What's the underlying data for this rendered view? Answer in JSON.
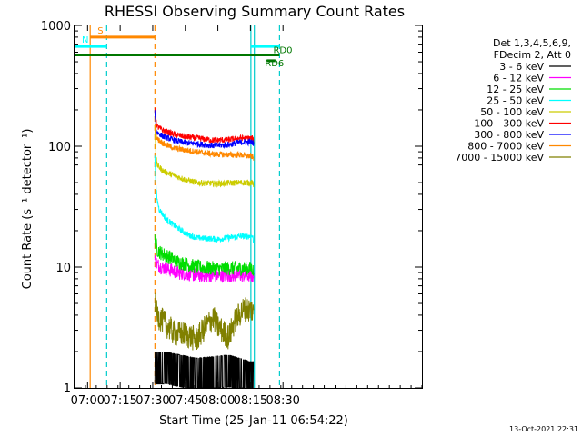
{
  "chart_data": {
    "type": "line",
    "title": "RHESSI Observing Summary Count Rates",
    "xlabel": "Start Time (25-Jan-11 06:54:22)",
    "ylabel": "Count Rate (s⁻¹ detector⁻¹)",
    "yscale": "log",
    "xlim": [
      414,
      574
    ],
    "ylim": [
      1,
      1000
    ],
    "x_ticks": [
      {
        "value": 420,
        "label": "07:00"
      },
      {
        "value": 435,
        "label": "07:15"
      },
      {
        "value": 450,
        "label": "07:30"
      },
      {
        "value": 465,
        "label": "07:45"
      },
      {
        "value": 480,
        "label": "08:00"
      },
      {
        "value": 495,
        "label": "08:15"
      },
      {
        "value": 510,
        "label": "08:30"
      }
    ],
    "y_ticks": [
      {
        "value": 1,
        "label": "1"
      },
      {
        "value": 10,
        "label": "10"
      },
      {
        "value": 100,
        "label": "100"
      },
      {
        "value": 1000,
        "label": "1000"
      }
    ],
    "legend_header": [
      "Det 1,3,4,5,6,9,",
      "FDecim 2, Att 0"
    ],
    "legend_position": "top-right outside",
    "series": [
      {
        "name": "3 - 6 keV",
        "color": "#000000",
        "x": [
          451.0,
          456,
          470,
          485,
          495,
          496.5
        ],
        "y": [
          1.8,
          1.8,
          1.6,
          1.7,
          1.5,
          1.5
        ]
      },
      {
        "name": "6 - 12 keV",
        "color": "#ff00ff",
        "x": [
          451.0,
          452,
          454,
          458,
          462,
          470,
          480,
          490,
          496,
          496.5
        ],
        "y": [
          11.5,
          10.5,
          10,
          9.5,
          9,
          8.6,
          8.5,
          8.6,
          8.5,
          8
        ]
      },
      {
        "name": "12 - 25 keV",
        "color": "#00dd00",
        "x": [
          451.0,
          452,
          454,
          458,
          462,
          470,
          480,
          490,
          496,
          496.5
        ],
        "y": [
          17,
          14,
          13,
          12,
          11,
          10,
          9.7,
          9.8,
          9.7,
          9
        ]
      },
      {
        "name": "25 - 50 keV",
        "color": "#00ffff",
        "x": [
          451.0,
          451.5,
          452,
          453,
          456,
          460,
          465,
          470,
          480,
          490,
          496,
          496.5
        ],
        "y": [
          80,
          45,
          36,
          30,
          25,
          22,
          19,
          17.5,
          17,
          18,
          18,
          16
        ]
      },
      {
        "name": "50 - 100 keV",
        "color": "#cccc00",
        "x": [
          451.0,
          451.5,
          452,
          455,
          460,
          465,
          470,
          480,
          490,
          496,
          496.5
        ],
        "y": [
          150,
          80,
          70,
          62,
          57,
          53,
          50,
          49,
          50,
          50,
          45
        ]
      },
      {
        "name": "100 - 300 keV",
        "color": "#ff0000",
        "x": [
          451.0,
          451.5,
          452,
          455,
          460,
          465,
          470,
          478,
          485,
          490,
          496,
          496.5
        ],
        "y": [
          210,
          160,
          145,
          135,
          125,
          120,
          117,
          112,
          113,
          117,
          116,
          110
        ]
      },
      {
        "name": "300 - 800 keV",
        "color": "#0000ff",
        "x": [
          451.0,
          451.5,
          452,
          455,
          460,
          465,
          470,
          478,
          485,
          490,
          496,
          496.5
        ],
        "y": [
          195,
          140,
          130,
          120,
          112,
          107,
          105,
          101,
          103,
          108,
          108,
          105
        ]
      },
      {
        "name": "800 - 7000 keV",
        "color": "#ff8800",
        "x": [
          451.0,
          451.5,
          452,
          455,
          460,
          465,
          470,
          478,
          485,
          490,
          496,
          496.5
        ],
        "y": [
          150,
          125,
          115,
          105,
          96,
          93,
          90,
          86,
          85,
          85,
          82,
          80
        ]
      },
      {
        "name": "7000 - 15000 keV",
        "color": "#808000",
        "x": [
          451.0,
          452,
          455,
          460,
          465,
          470,
          472,
          478,
          480,
          485,
          488,
          492,
          496,
          496.5
        ],
        "y": [
          5,
          4,
          3.5,
          2.8,
          2.8,
          2.5,
          2.8,
          3.8,
          3.2,
          2.6,
          3.6,
          4.5,
          4.4,
          4
        ]
      }
    ],
    "markers": {
      "vertical_lines": [
        {
          "x": 421.2,
          "color": "#ff8800",
          "style": "solid"
        },
        {
          "x": 428.8,
          "color": "#00cccc",
          "style": "dashed"
        },
        {
          "x": 451.0,
          "color": "#ff8800",
          "style": "dashed"
        },
        {
          "x": 495.2,
          "color": "#00cccc",
          "style": "solid"
        },
        {
          "x": 496.8,
          "color": "#00cccc",
          "style": "solid"
        },
        {
          "x": 508.4,
          "color": "#00cccc",
          "style": "dashed"
        }
      ],
      "segments": [
        {
          "label": "S",
          "color": "#ff8800",
          "x_start": 421.2,
          "x_end": 451.0,
          "y": 800
        },
        {
          "label": "N",
          "color": "#00ffff",
          "x_start": 414,
          "x_end": 428.8,
          "y": 670
        },
        {
          "label": "",
          "color": "#00ffff",
          "x_start": 495.2,
          "x_end": 508.4,
          "y": 670
        },
        {
          "label": "",
          "color": "#007700",
          "x_start": 414,
          "x_end": 508.4,
          "y": 570
        },
        {
          "label": "RD6",
          "color": "#007700",
          "x_start": 502.5,
          "x_end": 506.5,
          "y": 510
        }
      ],
      "text_labels": [
        {
          "text": "RD0",
          "color": "#007700",
          "x": 505.5,
          "y": 590
        }
      ]
    }
  },
  "footer": {
    "timestamp": "13-Oct-2021 22:31"
  }
}
